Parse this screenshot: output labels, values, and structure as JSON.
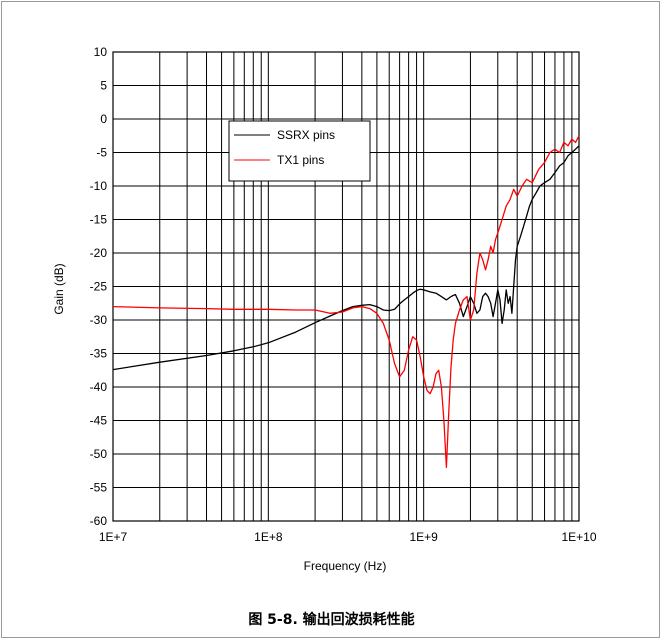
{
  "caption": "图 5-8. 输出回波损耗性能",
  "chart_data": {
    "type": "line",
    "xscale": "log",
    "xlabel": "Frequency (Hz)",
    "ylabel": "Gain (dB)",
    "xlim": [
      10000000,
      10000000000
    ],
    "ylim": [
      -60,
      10
    ],
    "grid": true,
    "legend_position": "top-left-inside",
    "x_tick_labels": [
      "1E+7",
      "1E+8",
      "1E+9",
      "1E+10"
    ],
    "x_tick_values": [
      10000000,
      100000000,
      1000000000,
      10000000000
    ],
    "y_ticks": [
      10,
      5,
      0,
      -5,
      -10,
      -15,
      -20,
      -25,
      -30,
      -35,
      -40,
      -45,
      -50,
      -55,
      -60
    ],
    "series": [
      {
        "name": "SSRX pins",
        "color": "#000000",
        "x": [
          10000000,
          20000000,
          40000000,
          60000000,
          80000000,
          100000000,
          150000000,
          200000000,
          250000000,
          300000000,
          350000000,
          400000000,
          450000000,
          500000000,
          550000000,
          600000000,
          650000000,
          700000000,
          750000000,
          800000000,
          850000000,
          900000000,
          950000000,
          1000000000,
          1100000000,
          1200000000,
          1300000000,
          1400000000,
          1500000000,
          1600000000,
          1700000000,
          1800000000,
          1900000000,
          2000000000,
          2100000000,
          2200000000,
          2300000000,
          2400000000,
          2500000000,
          2600000000,
          2700000000,
          2800000000,
          2900000000,
          3000000000,
          3100000000,
          3200000000,
          3300000000,
          3400000000,
          3500000000,
          3600000000,
          3700000000,
          3800000000,
          3900000000,
          4000000000,
          4200000000,
          4400000000,
          4600000000,
          4800000000,
          5000000000,
          5300000000,
          5600000000,
          6000000000,
          6500000000,
          7000000000,
          7500000000,
          8000000000,
          8500000000,
          9000000000,
          9500000000,
          10000000000
        ],
        "y": [
          -37.4,
          -36.3,
          -35.3,
          -34.6,
          -34.0,
          -33.4,
          -31.8,
          -30.4,
          -29.4,
          -28.6,
          -28.0,
          -27.8,
          -27.7,
          -28.0,
          -28.5,
          -28.6,
          -28.4,
          -27.6,
          -27.0,
          -26.5,
          -26.0,
          -25.6,
          -25.4,
          -25.5,
          -25.8,
          -26.0,
          -26.5,
          -27.0,
          -26.5,
          -26.2,
          -27.5,
          -29.5,
          -28.0,
          -26.5,
          -27.5,
          -29.0,
          -28.5,
          -26.5,
          -26.0,
          -26.5,
          -27.5,
          -29.5,
          -27.5,
          -25.5,
          -27.0,
          -30.5,
          -28.5,
          -25.5,
          -27.5,
          -26.5,
          -29.0,
          -25.0,
          -21.0,
          -19.0,
          -17.5,
          -16.0,
          -14.5,
          -13.0,
          -12.0,
          -11.0,
          -10.0,
          -9.5,
          -9.0,
          -8.0,
          -7.0,
          -6.5,
          -5.5,
          -5.0,
          -4.5,
          -4.0
        ]
      },
      {
        "name": "TX1 pins",
        "color": "#ff0000",
        "x": [
          10000000,
          20000000,
          40000000,
          60000000,
          80000000,
          100000000,
          150000000,
          200000000,
          250000000,
          300000000,
          350000000,
          400000000,
          450000000,
          500000000,
          550000000,
          600000000,
          650000000,
          700000000,
          750000000,
          800000000,
          850000000,
          900000000,
          950000000,
          1000000000,
          1050000000,
          1100000000,
          1150000000,
          1200000000,
          1250000000,
          1300000000,
          1350000000,
          1400000000,
          1450000000,
          1500000000,
          1550000000,
          1600000000,
          1700000000,
          1800000000,
          1900000000,
          2000000000,
          2100000000,
          2200000000,
          2300000000,
          2400000000,
          2500000000,
          2600000000,
          2700000000,
          2800000000,
          2900000000,
          3000000000,
          3200000000,
          3400000000,
          3600000000,
          3800000000,
          4000000000,
          4300000000,
          4600000000,
          5000000000,
          5500000000,
          6000000000,
          6500000000,
          7000000000,
          7500000000,
          8000000000,
          8500000000,
          9000000000,
          9500000000,
          10000000000
        ],
        "y": [
          -28.0,
          -28.2,
          -28.3,
          -28.4,
          -28.4,
          -28.4,
          -28.5,
          -28.5,
          -29.0,
          -28.8,
          -28.2,
          -28.0,
          -28.3,
          -29.0,
          -30.5,
          -33.0,
          -36.5,
          -38.5,
          -37.5,
          -34.5,
          -32.5,
          -33.0,
          -35.5,
          -38.5,
          -40.5,
          -41.0,
          -40.0,
          -38.0,
          -37.5,
          -40.0,
          -45.0,
          -52.0,
          -44.0,
          -37.0,
          -33.0,
          -30.5,
          -28.5,
          -27.0,
          -26.5,
          -30.0,
          -28.5,
          -23.0,
          -20.0,
          -21.0,
          -22.5,
          -21.0,
          -19.0,
          -20.0,
          -18.0,
          -17.0,
          -15.0,
          -13.0,
          -12.0,
          -10.5,
          -11.5,
          -10.0,
          -9.0,
          -9.5,
          -7.5,
          -6.5,
          -5.0,
          -4.5,
          -5.0,
          -3.5,
          -4.0,
          -3.0,
          -3.5,
          -2.5
        ]
      }
    ]
  }
}
